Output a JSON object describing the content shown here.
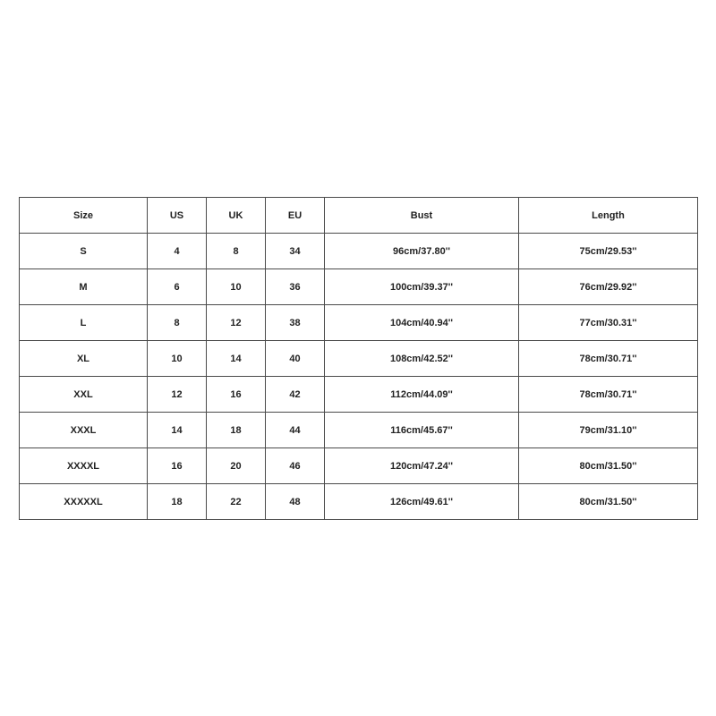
{
  "table": {
    "header": [
      "Size",
      "US",
      "UK",
      "EU",
      "Bust",
      "Length"
    ],
    "rows": [
      [
        "S",
        "4",
        "8",
        "34",
        "96cm/37.80''",
        "75cm/29.53''"
      ],
      [
        "M",
        "6",
        "10",
        "36",
        "100cm/39.37''",
        "76cm/29.92''"
      ],
      [
        "L",
        "8",
        "12",
        "38",
        "104cm/40.94''",
        "77cm/30.31''"
      ],
      [
        "XL",
        "10",
        "14",
        "40",
        "108cm/42.52''",
        "78cm/30.71''"
      ],
      [
        "XXL",
        "12",
        "16",
        "42",
        "112cm/44.09''",
        "78cm/30.71''"
      ],
      [
        "XXXL",
        "14",
        "18",
        "44",
        "116cm/45.67''",
        "79cm/31.10''"
      ],
      [
        "XXXXL",
        "16",
        "20",
        "46",
        "120cm/47.24''",
        "80cm/31.50''"
      ],
      [
        "XXXXXL",
        "18",
        "22",
        "48",
        "126cm/49.61''",
        "80cm/31.50''"
      ]
    ]
  }
}
